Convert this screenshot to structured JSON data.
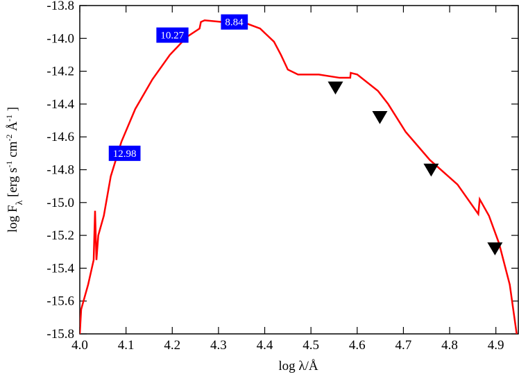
{
  "chart_data": {
    "type": "line",
    "xlabel": "log λ/Å",
    "ylabel": [
      "log F",
      "λ",
      " [erg s",
      "-1",
      " cm",
      "-2",
      " Å",
      "-1",
      " ]"
    ],
    "xlim": [
      4.0,
      4.95
    ],
    "ylim": [
      -15.8,
      -13.8
    ],
    "xticks": [
      {
        "value": 4,
        "label": "4.0"
      },
      4.1,
      4.2,
      4.3,
      4.4,
      4.5,
      4.6,
      4.7,
      4.8,
      4.9
    ],
    "yticks": [
      -15.8,
      -15.6,
      -15.4,
      -15.2,
      {
        "value": -15,
        "label": "-15.0"
      },
      -14.8,
      -14.6,
      -14.4,
      -14.2,
      {
        "value": -14,
        "label": "-14.0"
      },
      -13.8
    ],
    "series": [
      {
        "color": "#ff0000",
        "x": [
          4.0,
          4.003,
          4.018,
          4.03,
          4.033,
          4.036,
          4.04,
          4.052,
          4.067,
          4.09,
          4.12,
          4.157,
          4.195,
          4.232,
          4.259,
          4.262,
          4.27,
          4.307,
          4.352,
          4.39,
          4.42,
          4.435,
          4.45,
          4.472,
          4.517,
          4.562,
          4.585,
          4.586,
          4.6,
          4.645,
          4.667,
          4.705,
          4.757,
          4.817,
          4.862,
          4.865,
          4.885,
          4.907,
          4.93,
          4.945
        ],
        "values": [
          -15.8,
          -15.65,
          -15.5,
          -15.35,
          -15.05,
          -15.35,
          -15.2,
          -15.08,
          -14.84,
          -14.63,
          -14.43,
          -14.25,
          -14.1,
          -13.99,
          -13.94,
          -13.9,
          -13.89,
          -13.9,
          -13.9,
          -13.94,
          -14.02,
          -14.1,
          -14.19,
          -14.22,
          -14.22,
          -14.24,
          -14.24,
          -14.21,
          -14.22,
          -14.32,
          -14.4,
          -14.57,
          -14.74,
          -14.89,
          -15.07,
          -14.98,
          -15.08,
          -15.25,
          -15.5,
          -15.8
        ]
      },
      {
        "type": "scatter",
        "marker": "triangle-down",
        "color": "#000000",
        "x": [
          4.553,
          4.649,
          4.76,
          4.898
        ],
        "values": [
          -14.3,
          -14.48,
          -14.8,
          -15.28
        ]
      }
    ],
    "annotations": [
      {
        "text": "10.27",
        "x": 4.2,
        "y": -13.98
      },
      {
        "text": "8.84",
        "x": 4.334,
        "y": -13.9
      },
      {
        "text": "12.98",
        "x": 4.097,
        "y": -14.7
      }
    ],
    "annotation_color": "#0000ff"
  }
}
